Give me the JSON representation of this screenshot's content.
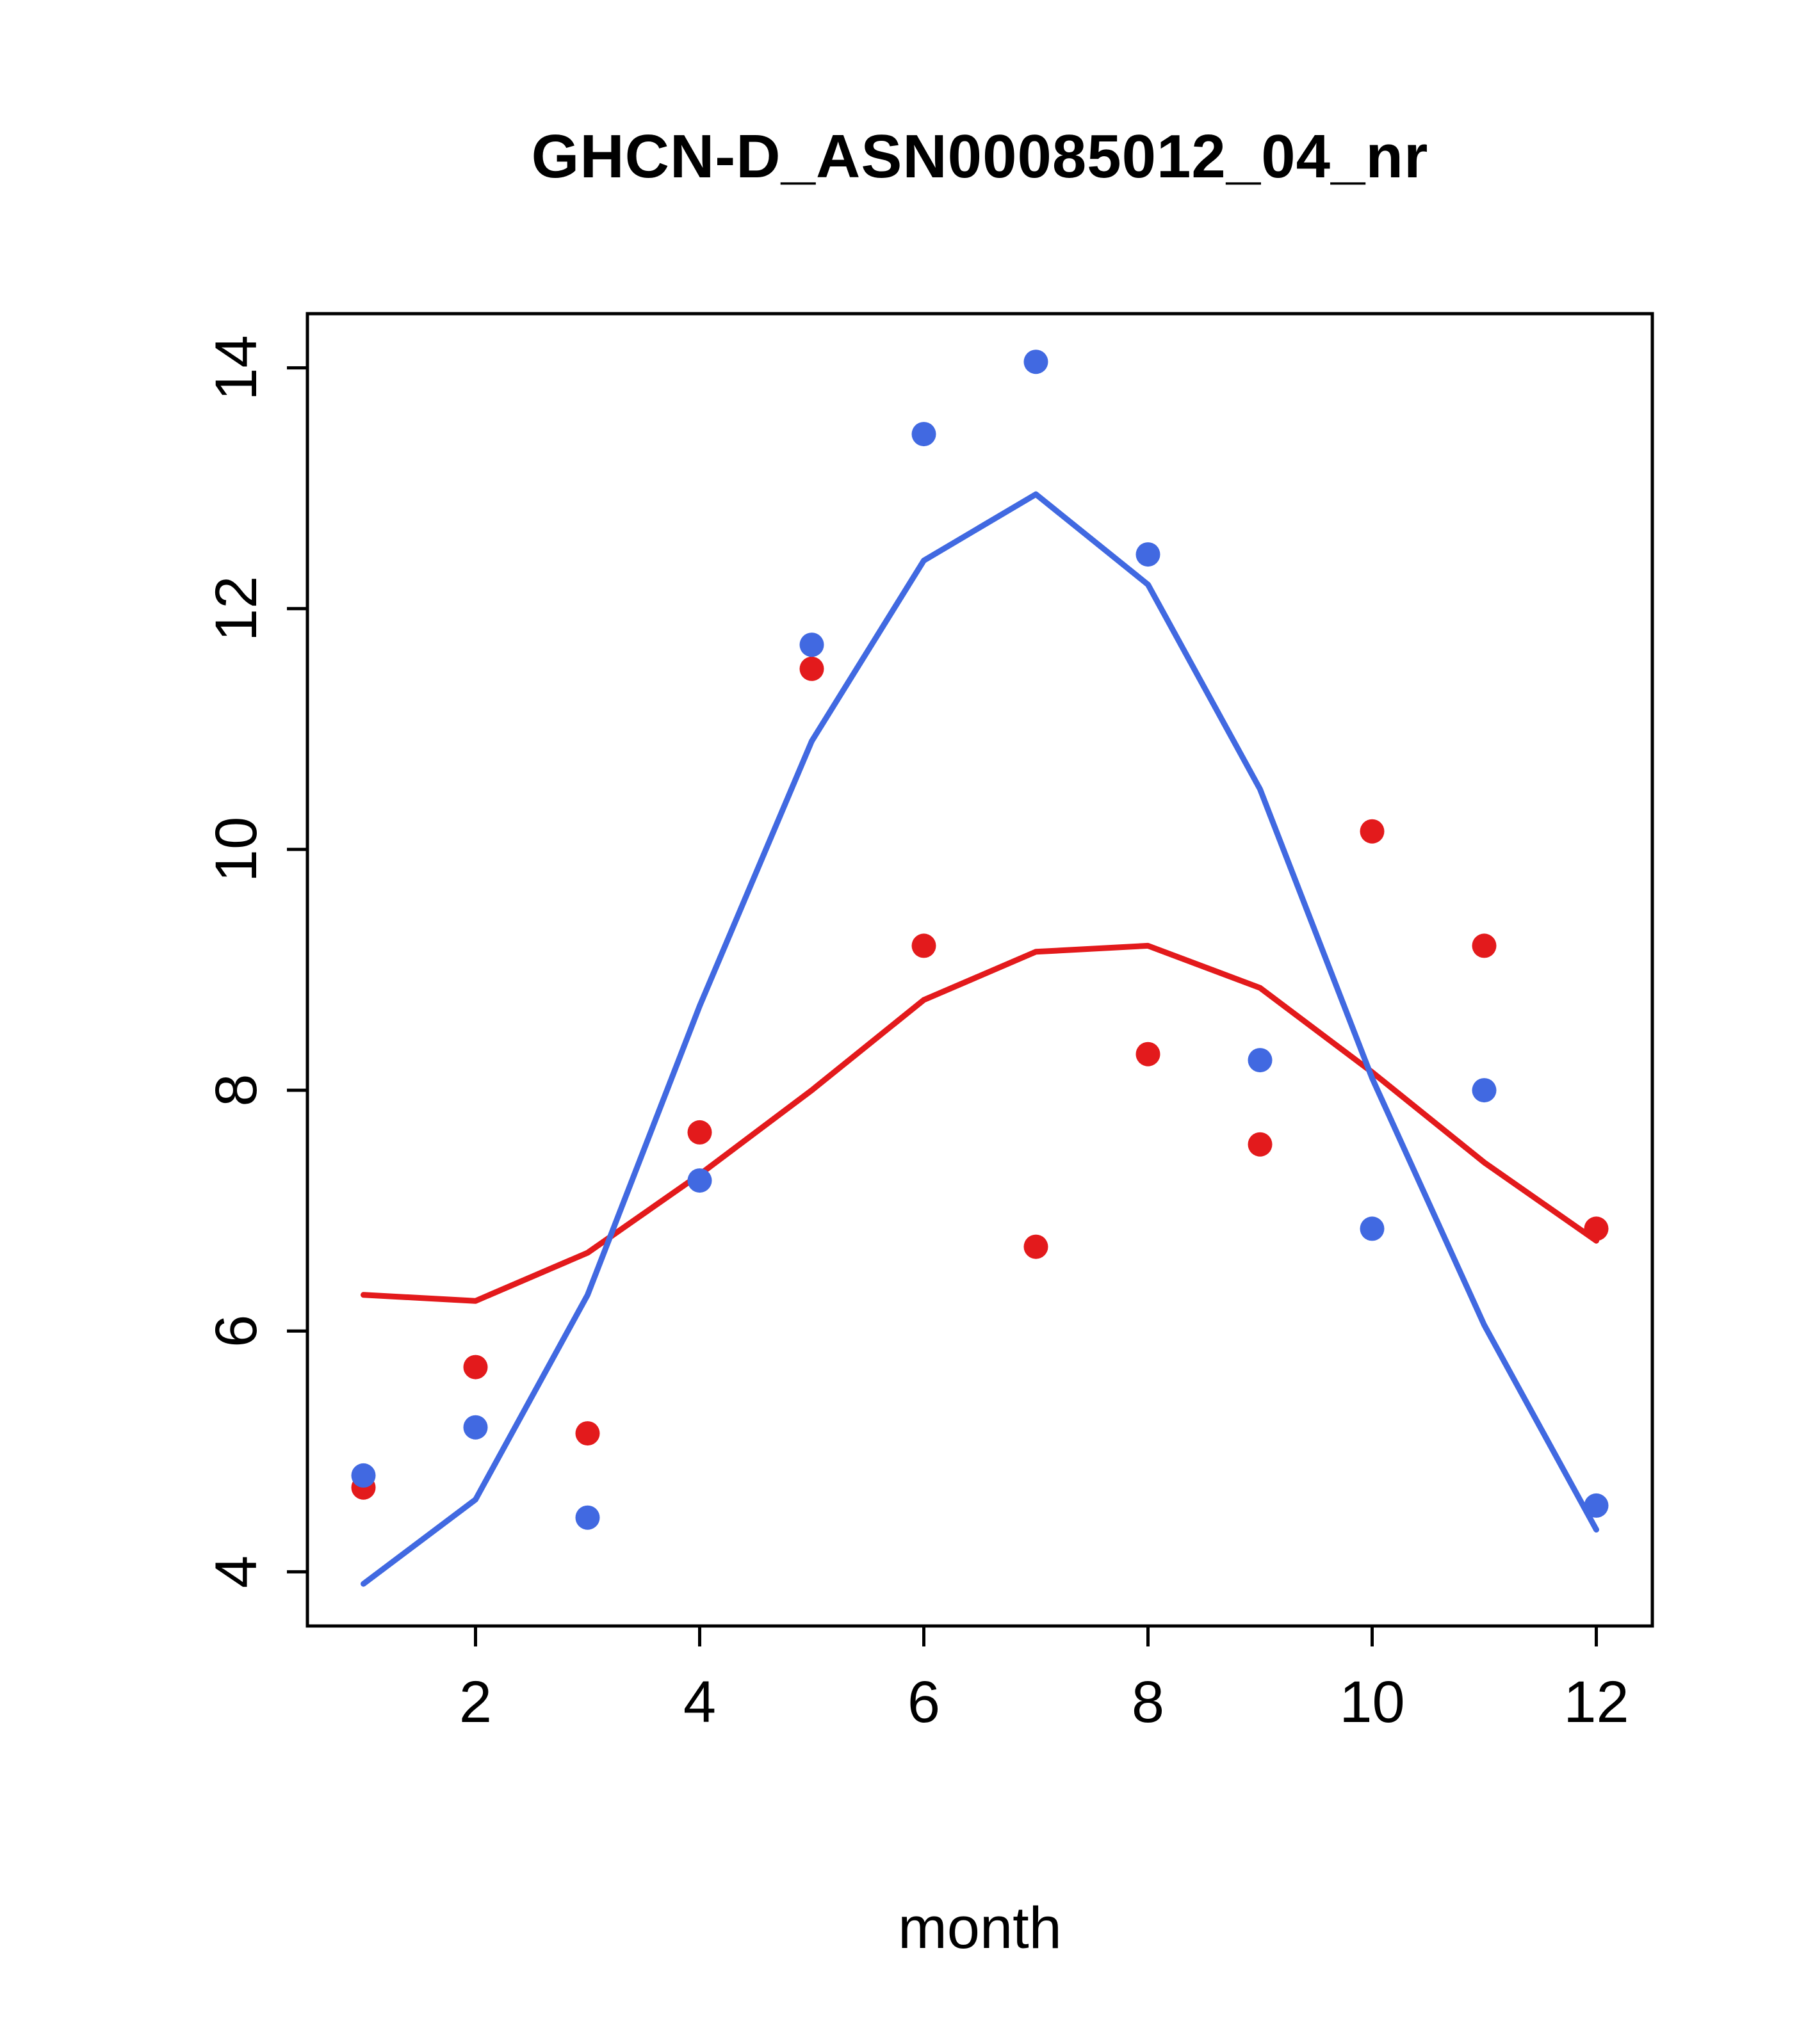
{
  "title": "GHCN-D_ASN00085012_04_nr",
  "chart_data": {
    "type": "scatter",
    "title": "GHCN-D_ASN00085012_04_nr",
    "xlabel": "month",
    "ylabel": "",
    "x": [
      1,
      2,
      3,
      4,
      5,
      6,
      7,
      8,
      9,
      10,
      11,
      12
    ],
    "xticks": [
      2,
      4,
      6,
      8,
      10,
      12
    ],
    "yticks": [
      4,
      6,
      8,
      10,
      12,
      14
    ],
    "xlim": [
      0.5,
      12.5
    ],
    "ylim": [
      3.55,
      14.45
    ],
    "grid": false,
    "legend": "none",
    "series": [
      {
        "name": "red-series",
        "color": "#e31a1c",
        "points": [
          4.7,
          5.7,
          5.15,
          7.65,
          11.5,
          9.2,
          6.7,
          8.3,
          7.55,
          10.15,
          9.2,
          6.85
        ],
        "line": [
          6.3,
          6.25,
          6.65,
          7.3,
          8.0,
          8.75,
          9.15,
          9.2,
          8.85,
          8.15,
          7.4,
          6.75
        ]
      },
      {
        "name": "blue-series",
        "color": "#4169e1",
        "points": [
          4.8,
          5.2,
          4.45,
          7.25,
          11.7,
          13.45,
          14.05,
          12.45,
          8.25,
          6.85,
          8.0,
          4.55
        ],
        "line": [
          3.9,
          4.6,
          6.3,
          8.7,
          10.9,
          12.4,
          12.95,
          12.2,
          10.5,
          8.1,
          6.05,
          4.35
        ]
      }
    ]
  }
}
